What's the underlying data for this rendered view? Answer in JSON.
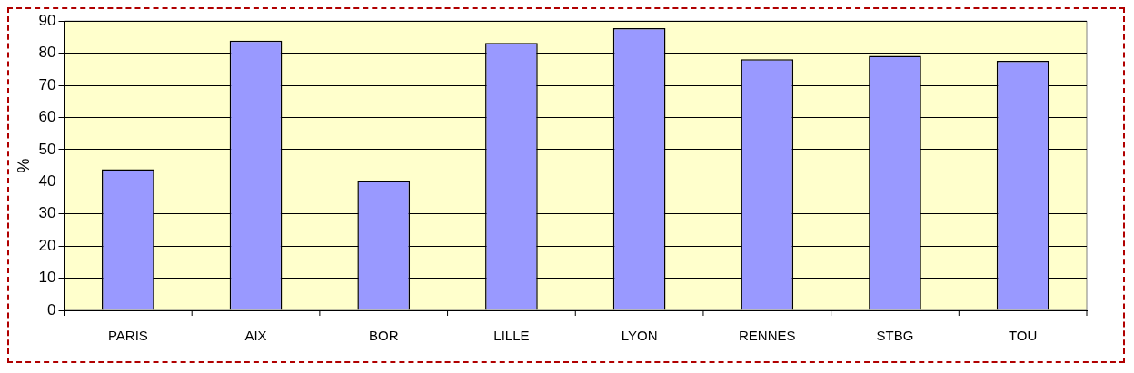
{
  "chart_data": {
    "type": "bar",
    "ylabel": "%",
    "categories": [
      "PARIS",
      "AIX",
      "BOR",
      "LILLE",
      "LYON",
      "RENNES",
      "STBG",
      "TOU"
    ],
    "values": [
      43.9,
      83.9,
      40.4,
      83.2,
      87.8,
      78.1,
      79.2,
      77.6
    ],
    "color": "#9999ff",
    "ylim": [
      0,
      90
    ],
    "yticks": [
      0,
      10,
      20,
      30,
      40,
      50,
      60,
      70,
      80,
      90
    ],
    "grid": "y",
    "legend": false
  }
}
